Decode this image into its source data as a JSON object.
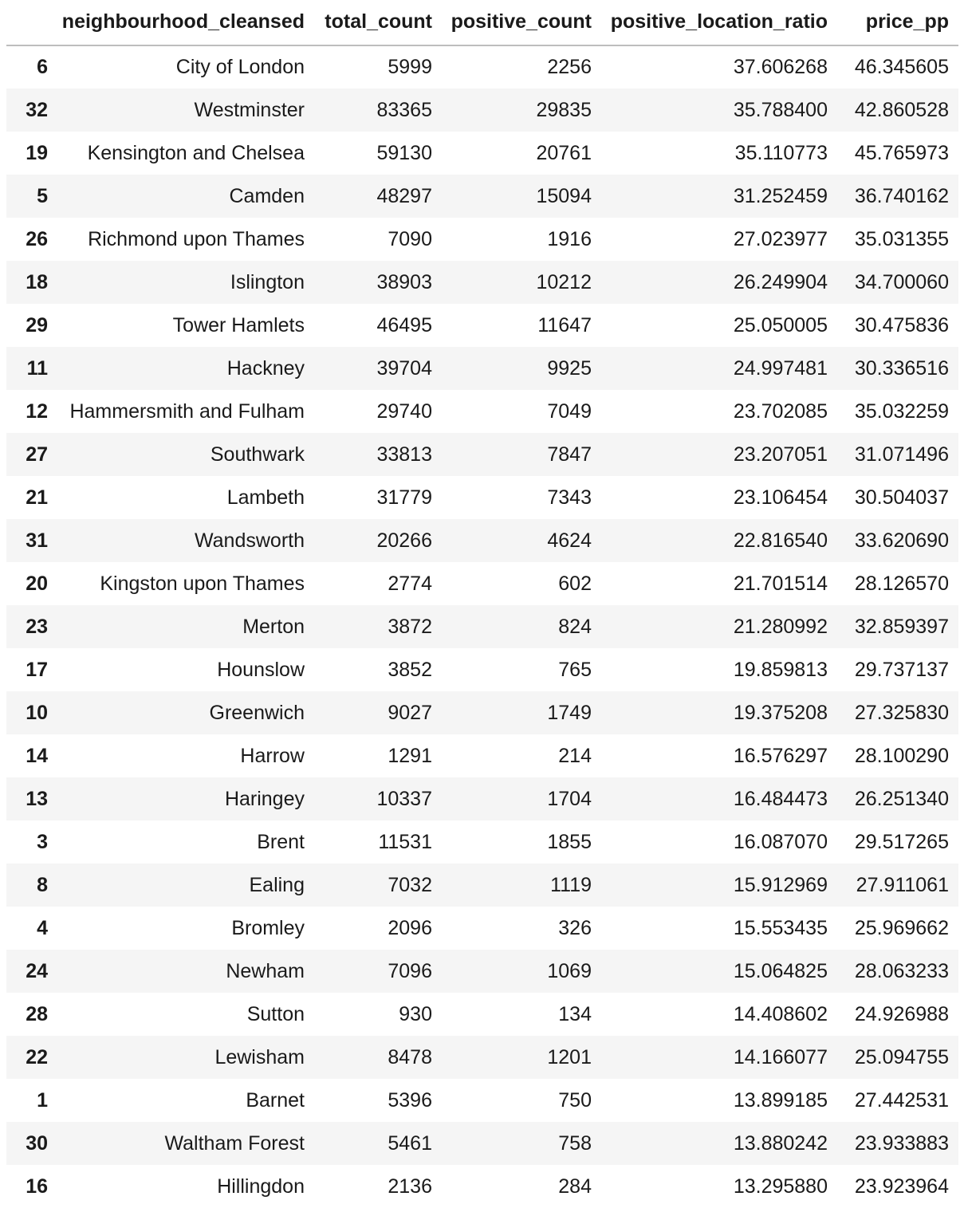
{
  "table": {
    "columns": [
      "",
      "neighbourhood_cleansed",
      "total_count",
      "positive_count",
      "positive_location_ratio",
      "price_pp"
    ],
    "rows": [
      [
        "6",
        "City of London",
        "5999",
        "2256",
        "37.606268",
        "46.345605"
      ],
      [
        "32",
        "Westminster",
        "83365",
        "29835",
        "35.788400",
        "42.860528"
      ],
      [
        "19",
        "Kensington and Chelsea",
        "59130",
        "20761",
        "35.110773",
        "45.765973"
      ],
      [
        "5",
        "Camden",
        "48297",
        "15094",
        "31.252459",
        "36.740162"
      ],
      [
        "26",
        "Richmond upon Thames",
        "7090",
        "1916",
        "27.023977",
        "35.031355"
      ],
      [
        "18",
        "Islington",
        "38903",
        "10212",
        "26.249904",
        "34.700060"
      ],
      [
        "29",
        "Tower Hamlets",
        "46495",
        "11647",
        "25.050005",
        "30.475836"
      ],
      [
        "11",
        "Hackney",
        "39704",
        "9925",
        "24.997481",
        "30.336516"
      ],
      [
        "12",
        "Hammersmith and Fulham",
        "29740",
        "7049",
        "23.702085",
        "35.032259"
      ],
      [
        "27",
        "Southwark",
        "33813",
        "7847",
        "23.207051",
        "31.071496"
      ],
      [
        "21",
        "Lambeth",
        "31779",
        "7343",
        "23.106454",
        "30.504037"
      ],
      [
        "31",
        "Wandsworth",
        "20266",
        "4624",
        "22.816540",
        "33.620690"
      ],
      [
        "20",
        "Kingston upon Thames",
        "2774",
        "602",
        "21.701514",
        "28.126570"
      ],
      [
        "23",
        "Merton",
        "3872",
        "824",
        "21.280992",
        "32.859397"
      ],
      [
        "17",
        "Hounslow",
        "3852",
        "765",
        "19.859813",
        "29.737137"
      ],
      [
        "10",
        "Greenwich",
        "9027",
        "1749",
        "19.375208",
        "27.325830"
      ],
      [
        "14",
        "Harrow",
        "1291",
        "214",
        "16.576297",
        "28.100290"
      ],
      [
        "13",
        "Haringey",
        "10337",
        "1704",
        "16.484473",
        "26.251340"
      ],
      [
        "3",
        "Brent",
        "11531",
        "1855",
        "16.087070",
        "29.517265"
      ],
      [
        "8",
        "Ealing",
        "7032",
        "1119",
        "15.912969",
        "27.911061"
      ],
      [
        "4",
        "Bromley",
        "2096",
        "326",
        "15.553435",
        "25.969662"
      ],
      [
        "24",
        "Newham",
        "7096",
        "1069",
        "15.064825",
        "28.063233"
      ],
      [
        "28",
        "Sutton",
        "930",
        "134",
        "14.408602",
        "24.926988"
      ],
      [
        "22",
        "Lewisham",
        "8478",
        "1201",
        "14.166077",
        "25.094755"
      ],
      [
        "1",
        "Barnet",
        "5396",
        "750",
        "13.899185",
        "27.442531"
      ],
      [
        "30",
        "Waltham Forest",
        "5461",
        "758",
        "13.880242",
        "23.933883"
      ],
      [
        "16",
        "Hillingdon",
        "2136",
        "284",
        "13.295880",
        "23.923964"
      ]
    ]
  },
  "colors": {
    "stripe": "#f5f5f5",
    "header_rule": "#bdbdbd",
    "text": "#1a1a1a"
  }
}
